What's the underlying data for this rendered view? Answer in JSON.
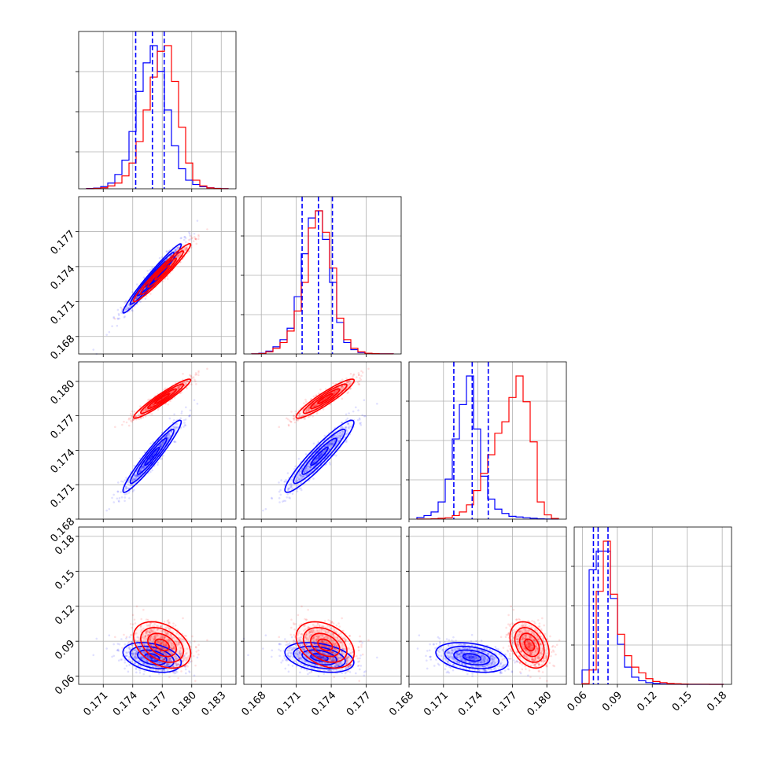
{
  "chart_data": {
    "type": "scatter",
    "title": "",
    "grid": true,
    "legend": "none",
    "colors": {
      "blue": "#0000ff",
      "red": "#ff0000"
    },
    "parameters": [
      {
        "range": [
          0.1685,
          0.1845
        ],
        "ticks": [
          0.171,
          0.174,
          0.177,
          0.18,
          0.183
        ],
        "tick_labels": [
          "0.171",
          "0.174",
          "0.177",
          "0.180",
          "0.183"
        ]
      },
      {
        "range": [
          0.1665,
          0.18
        ],
        "ticks": [
          0.168,
          0.171,
          0.174,
          0.177
        ],
        "tick_labels": [
          "0.168",
          "0.171",
          "0.174",
          "0.177"
        ]
      },
      {
        "range": [
          0.168,
          0.1817
        ],
        "ticks": [
          0.168,
          0.171,
          0.174,
          0.177,
          0.18
        ],
        "tick_labels": [
          "0.168",
          "0.171",
          "0.174",
          "0.177",
          "0.180"
        ]
      },
      {
        "range": [
          0.053,
          0.188
        ],
        "ticks": [
          0.06,
          0.09,
          0.12,
          0.15,
          0.18
        ],
        "tick_labels": [
          "0.06",
          "0.09",
          "0.12",
          "0.15",
          "0.18"
        ]
      }
    ],
    "series": [
      {
        "name": "",
        "color": "#0000ff",
        "mean": [
          0.176,
          0.173,
          0.1735,
          0.0755
        ],
        "sd": [
          0.00145,
          0.00145,
          0.00155,
          0.0065
        ],
        "quantiles": [
          [
            0.1743,
            0.176,
            0.1772
          ],
          [
            0.1715,
            0.1729,
            0.1741
          ],
          [
            0.1719,
            0.1735,
            0.1749
          ],
          [
            0.0695,
            0.0735,
            0.082
          ]
        ]
      },
      {
        "name": "",
        "color": "#ff0000",
        "mean": [
          0.177,
          0.1735,
          0.1785,
          0.0855
        ],
        "sd": [
          0.00145,
          0.00125,
          0.00085,
          0.01
        ]
      }
    ],
    "histograms": [
      {
        "blue": [
          0.2,
          0.5,
          1.5,
          4,
          10,
          20,
          40,
          68,
          88,
          100,
          82,
          55,
          30,
          14,
          6,
          3,
          1.5,
          0.7,
          0.3,
          0.1
        ],
        "red": [
          0.1,
          0.3,
          0.7,
          2,
          4,
          9,
          18,
          33,
          55,
          78,
          96,
          100,
          75,
          43,
          18,
          6,
          2,
          0.6,
          0.2,
          0.05
        ]
      },
      {
        "blue": [
          0.1,
          0.5,
          2,
          5,
          10,
          18,
          40,
          70,
          95,
          100,
          80,
          50,
          22,
          8,
          3,
          1,
          0.5,
          0.2,
          0.1,
          0.05
        ],
        "red": [
          0.1,
          0.3,
          1.5,
          4,
          8,
          16,
          30,
          50,
          88,
          100,
          85,
          60,
          25,
          10,
          4,
          1.5,
          0.5,
          0.2,
          0.1,
          0.05
        ]
      },
      {
        "blue": [
          1.2,
          2.5,
          5,
          12,
          28,
          56,
          80,
          100,
          63,
          30,
          14,
          7,
          4,
          2,
          1.5,
          1,
          0.6,
          0.2,
          0.1,
          0.05
        ],
        "red": [
          0.05,
          0.1,
          0.3,
          0.6,
          1,
          2.5,
          5,
          10,
          20,
          32,
          45,
          60,
          68,
          85,
          100,
          82,
          54,
          12,
          3,
          0.5
        ]
      },
      {
        "blue": [
          10,
          80,
          93,
          93,
          60,
          28,
          12,
          5,
          2.5,
          1.2,
          0.6,
          0.3,
          0.1,
          0.05,
          0.02,
          0.01,
          0.01,
          0,
          0,
          0
        ],
        "red": [
          0.5,
          10,
          65,
          100,
          63,
          35,
          20,
          12,
          8,
          4,
          2,
          1.2,
          0.6,
          0.4,
          0.2,
          0.1,
          0.1,
          0.05,
          0.02,
          0
        ]
      }
    ]
  }
}
